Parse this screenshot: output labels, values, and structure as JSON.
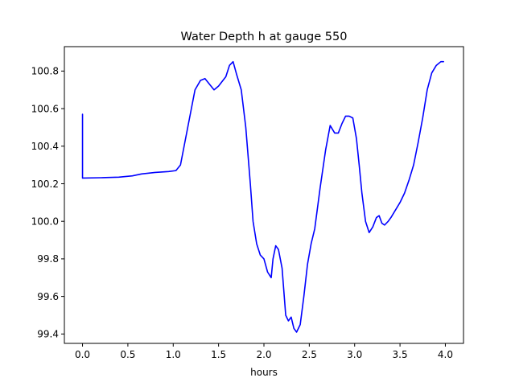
{
  "chart_data": {
    "type": "line",
    "title": "Water Depth h at gauge 550",
    "xlabel": "hours",
    "ylabel": "",
    "xlim": [
      -0.2,
      4.2
    ],
    "ylim": [
      99.35,
      100.93
    ],
    "xticks": [
      0.0,
      0.5,
      1.0,
      1.5,
      2.0,
      2.5,
      3.0,
      3.5,
      4.0
    ],
    "xtick_labels": [
      "0.0",
      "0.5",
      "1.0",
      "1.5",
      "2.0",
      "2.5",
      "3.0",
      "3.5",
      "4.0"
    ],
    "yticks": [
      99.4,
      99.6,
      99.8,
      100.0,
      100.2,
      100.4,
      100.6,
      100.8
    ],
    "ytick_labels": [
      "99.4",
      "99.6",
      "99.8",
      "100.0",
      "100.2",
      "100.4",
      "100.6",
      "100.8"
    ],
    "grid": false,
    "legend": "none",
    "series": [
      {
        "color": "#0000ff",
        "x": [
          0.0,
          0.0,
          0.0,
          0.2,
          0.4,
          0.55,
          0.65,
          0.8,
          0.95,
          1.03,
          1.08,
          1.12,
          1.18,
          1.24,
          1.3,
          1.35,
          1.4,
          1.45,
          1.5,
          1.58,
          1.62,
          1.66,
          1.7,
          1.75,
          1.8,
          1.85,
          1.88,
          1.92,
          1.96,
          2.0,
          2.04,
          2.08,
          2.1,
          2.13,
          2.16,
          2.2,
          2.24,
          2.27,
          2.3,
          2.33,
          2.36,
          2.4,
          2.44,
          2.48,
          2.52,
          2.56,
          2.62,
          2.68,
          2.73,
          2.78,
          2.82,
          2.86,
          2.9,
          2.94,
          2.98,
          3.02,
          3.05,
          3.08,
          3.12,
          3.16,
          3.2,
          3.24,
          3.27,
          3.3,
          3.33,
          3.37,
          3.4,
          3.45,
          3.5,
          3.55,
          3.6,
          3.65,
          3.7,
          3.75,
          3.8,
          3.85,
          3.9,
          3.95,
          3.98
        ],
        "y": [
          100.57,
          100.4,
          100.23,
          100.232,
          100.235,
          100.242,
          100.252,
          100.26,
          100.265,
          100.27,
          100.3,
          100.4,
          100.55,
          100.7,
          100.75,
          100.76,
          100.73,
          100.7,
          100.72,
          100.77,
          100.83,
          100.85,
          100.78,
          100.7,
          100.5,
          100.2,
          100.0,
          99.88,
          99.82,
          99.8,
          99.73,
          99.7,
          99.8,
          99.87,
          99.85,
          99.75,
          99.5,
          99.47,
          99.49,
          99.43,
          99.41,
          99.45,
          99.6,
          99.77,
          99.88,
          99.96,
          100.18,
          100.38,
          100.51,
          100.47,
          100.47,
          100.52,
          100.56,
          100.56,
          100.55,
          100.44,
          100.3,
          100.15,
          100.0,
          99.94,
          99.97,
          100.02,
          100.03,
          99.99,
          99.98,
          100.0,
          100.02,
          100.06,
          100.1,
          100.15,
          100.22,
          100.3,
          100.42,
          100.55,
          100.7,
          100.79,
          100.83,
          100.85,
          100.85
        ]
      }
    ]
  }
}
